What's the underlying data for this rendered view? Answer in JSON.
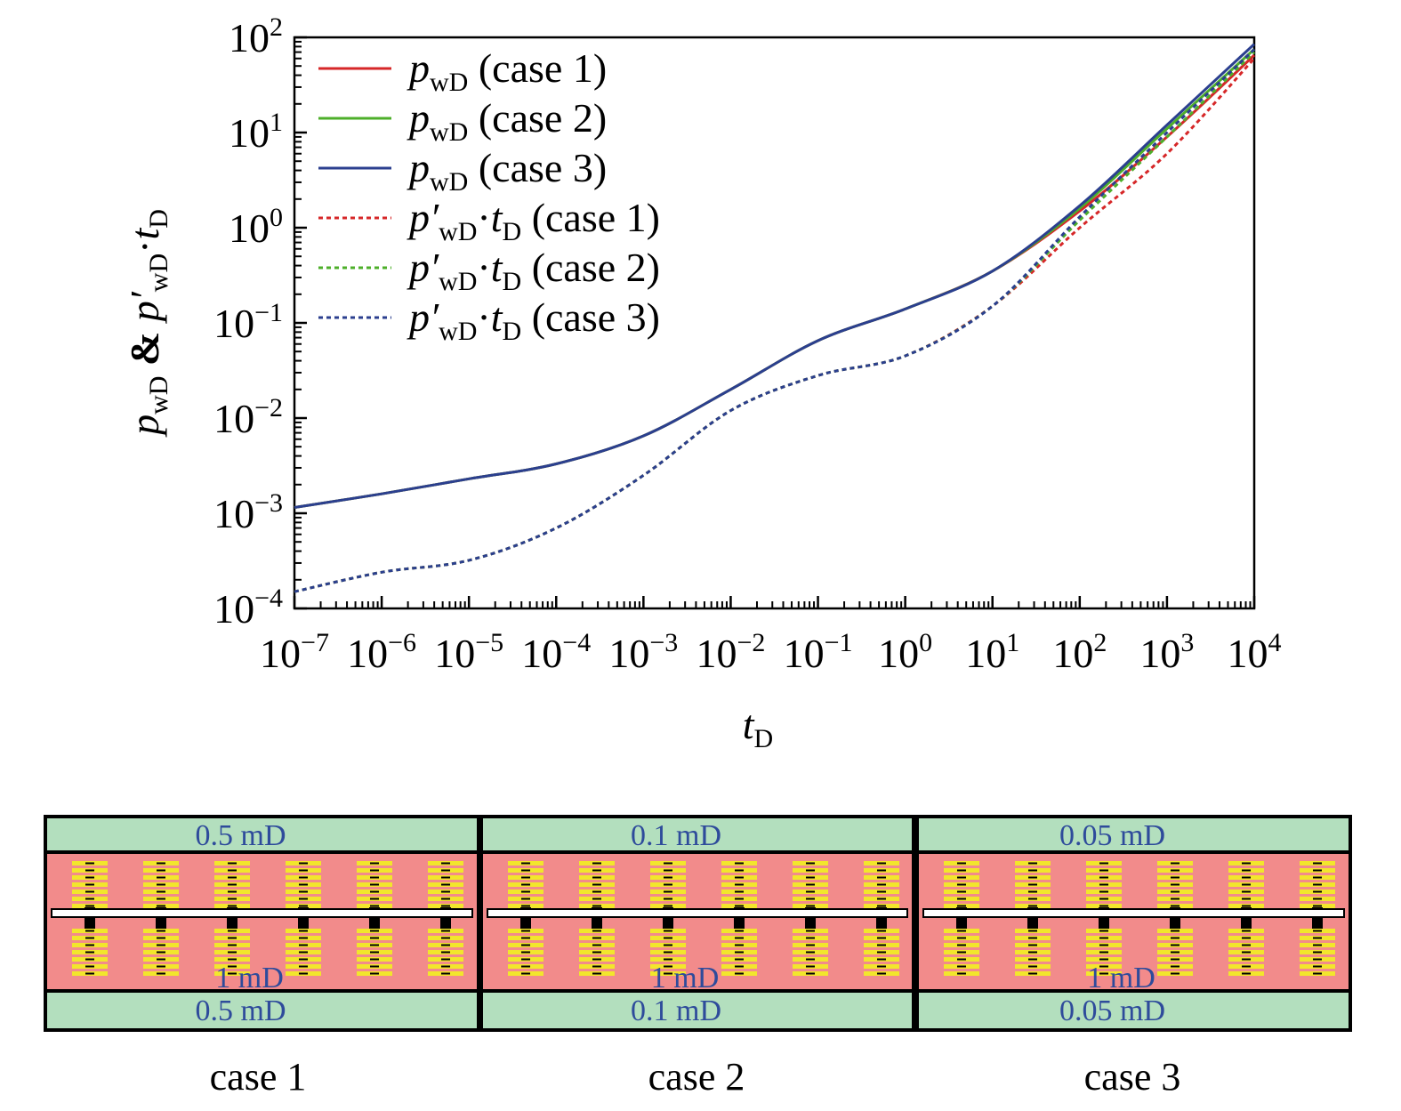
{
  "chart_data": {
    "type": "line",
    "xlabel": "t",
    "xlabel_sub": "D",
    "ylabel_parts": {
      "p": "p",
      "wD": "wD",
      "amp": " & ",
      "pprime": "p′",
      "wD2": "wD",
      "dot": "·",
      "t": "t",
      "D": "D"
    },
    "x_scale": "log",
    "y_scale": "log",
    "xlim": [
      1e-07,
      10000
    ],
    "ylim": [
      0.0001,
      100
    ],
    "x_ticks": [
      {
        "base": "10",
        "exp": "−7"
      },
      {
        "base": "10",
        "exp": "−6"
      },
      {
        "base": "10",
        "exp": "−5"
      },
      {
        "base": "10",
        "exp": "−4"
      },
      {
        "base": "10",
        "exp": "−3"
      },
      {
        "base": "10",
        "exp": "−2"
      },
      {
        "base": "10",
        "exp": "−1"
      },
      {
        "base": "10",
        "exp": "0"
      },
      {
        "base": "10",
        "exp": "1"
      },
      {
        "base": "10",
        "exp": "2"
      },
      {
        "base": "10",
        "exp": "3"
      },
      {
        "base": "10",
        "exp": "4"
      }
    ],
    "y_ticks": [
      {
        "base": "10",
        "exp": "−4"
      },
      {
        "base": "10",
        "exp": "−3"
      },
      {
        "base": "10",
        "exp": "−2"
      },
      {
        "base": "10",
        "exp": "−1"
      },
      {
        "base": "10",
        "exp": "0"
      },
      {
        "base": "10",
        "exp": "1"
      },
      {
        "base": "10",
        "exp": "2"
      }
    ],
    "legend_position": "top-left",
    "grid": false,
    "series": [
      {
        "legend_main": "p",
        "legend_sub": "wD",
        "legend_tail": " (case 1)",
        "prime": false,
        "color": "#d62728",
        "dash": "solid",
        "x": [
          1e-07,
          1e-06,
          1e-05,
          0.0001,
          0.001,
          0.01,
          0.1,
          1,
          10,
          100,
          1000,
          10000
        ],
        "y": [
          0.00115,
          0.0016,
          0.0023,
          0.0033,
          0.0065,
          0.02,
          0.065,
          0.14,
          0.35,
          1.5,
          9,
          65
        ]
      },
      {
        "legend_main": "p",
        "legend_sub": "wD",
        "legend_tail": " (case 2)",
        "prime": false,
        "color": "#4daf2a",
        "dash": "solid",
        "x": [
          1e-07,
          1e-06,
          1e-05,
          0.0001,
          0.001,
          0.01,
          0.1,
          1,
          10,
          100,
          1000,
          10000
        ],
        "y": [
          0.00115,
          0.0016,
          0.0023,
          0.0033,
          0.0065,
          0.02,
          0.065,
          0.14,
          0.35,
          1.6,
          11,
          75
        ]
      },
      {
        "legend_main": "p",
        "legend_sub": "wD",
        "legend_tail": " (case 3)",
        "prime": false,
        "color": "#2b3f8f",
        "dash": "solid",
        "x": [
          1e-07,
          1e-06,
          1e-05,
          0.0001,
          0.001,
          0.01,
          0.1,
          1,
          10,
          100,
          1000,
          10000
        ],
        "y": [
          0.00115,
          0.0016,
          0.0023,
          0.0033,
          0.0065,
          0.02,
          0.065,
          0.14,
          0.35,
          1.7,
          12,
          85
        ]
      },
      {
        "legend_main": "p′",
        "legend_sub": "wD",
        "legend_tail": " (case 1)",
        "prime": true,
        "color": "#d62728",
        "dash": "dotted",
        "x": [
          1e-07,
          1e-06,
          1e-05,
          0.0001,
          0.001,
          0.01,
          0.1,
          1,
          10,
          100,
          1000,
          10000
        ],
        "y": [
          0.00015,
          0.00024,
          0.00032,
          0.0007,
          0.0025,
          0.012,
          0.028,
          0.045,
          0.15,
          1.0,
          6,
          60
        ]
      },
      {
        "legend_main": "p′",
        "legend_sub": "wD",
        "legend_tail": " (case 2)",
        "prime": true,
        "color": "#4daf2a",
        "dash": "dotted",
        "x": [
          1e-07,
          1e-06,
          1e-05,
          0.0001,
          0.001,
          0.01,
          0.1,
          1,
          10,
          100,
          1000,
          10000
        ],
        "y": [
          0.00015,
          0.00024,
          0.00032,
          0.0007,
          0.0025,
          0.012,
          0.028,
          0.045,
          0.15,
          1.2,
          9,
          70
        ]
      },
      {
        "legend_main": "p′",
        "legend_sub": "wD",
        "legend_tail": " (case 3)",
        "prime": true,
        "color": "#2b3f8f",
        "dash": "dotted",
        "x": [
          1e-07,
          1e-06,
          1e-05,
          0.0001,
          0.001,
          0.01,
          0.1,
          1,
          10,
          100,
          1000,
          10000
        ],
        "y": [
          0.00015,
          0.00024,
          0.00032,
          0.0007,
          0.0025,
          0.012,
          0.028,
          0.045,
          0.15,
          1.3,
          10,
          75
        ]
      }
    ]
  },
  "schematics": [
    {
      "label": "case 1",
      "top_perm": "0.5 mD",
      "middle_perm": "1 mD",
      "bottom_perm": "0.5 mD"
    },
    {
      "label": "case 2",
      "top_perm": "0.1 mD",
      "middle_perm": "1 mD",
      "bottom_perm": "0.1 mD"
    },
    {
      "label": "case 3",
      "top_perm": "0.05 mD",
      "middle_perm": "1 mD",
      "bottom_perm": "0.05 mD"
    }
  ],
  "colors": {
    "outer_zone": "#b3dfbe",
    "inner_zone": "#f28b8b",
    "fracture": "#f2e62c",
    "wellbore": "#ffffff",
    "perm_text": "#2e4b9b"
  }
}
